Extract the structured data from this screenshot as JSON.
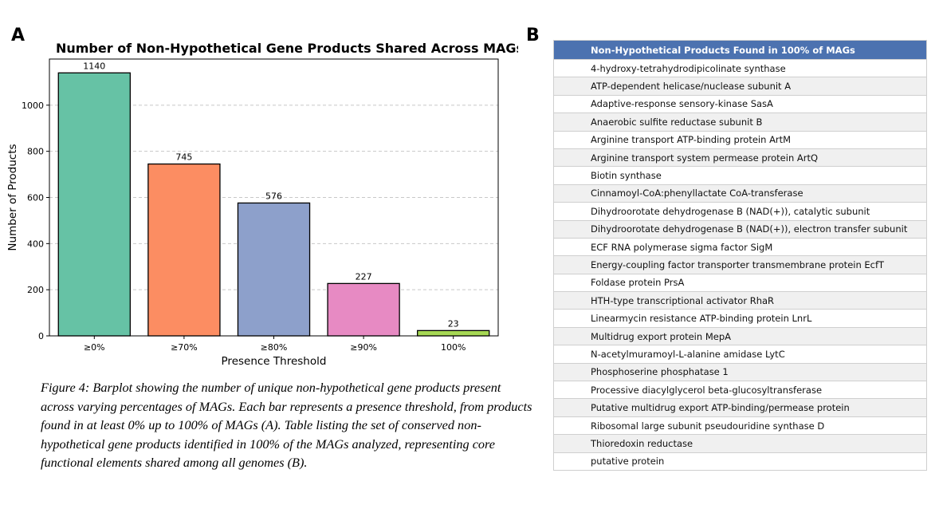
{
  "panels": {
    "a_label": "A",
    "b_label": "B"
  },
  "chart_data": {
    "type": "bar",
    "title": "Number of Non-Hypothetical Gene Products Shared Across MAGs",
    "xlabel": "Presence Threshold",
    "ylabel": "Number of Products",
    "categories": [
      "≥0%",
      "≥70%",
      "≥80%",
      "≥90%",
      "100%"
    ],
    "values": [
      1140,
      745,
      576,
      227,
      23
    ],
    "bar_colors": [
      "#66c2a5",
      "#fc8d62",
      "#8da0cb",
      "#e78ac3",
      "#a6d854"
    ],
    "ylim": [
      0,
      1200
    ],
    "yticks": [
      0,
      200,
      400,
      600,
      800,
      1000
    ],
    "grid": "horizontal dashed",
    "data_labels": true
  },
  "caption": "Figure 4: Barplot showing the number of unique non-hypothetical gene products present across varying percentages of MAGs. Each bar represents a presence threshold, from products found in at least 0% up to 100% of MAGs (A). Table listing the set of conserved non-hypothetical gene products identified in 100% of the MAGs analyzed, representing core functional elements shared among all genomes (B).",
  "table": {
    "header": "Non-Hypothetical Products Found in 100% of MAGs",
    "header_color": "#4c72b0",
    "rows": [
      "4-hydroxy-tetrahydrodipicolinate synthase",
      "ATP-dependent helicase/nuclease subunit A",
      "Adaptive-response sensory-kinase SasA",
      "Anaerobic sulfite reductase subunit B",
      "Arginine transport ATP-binding protein ArtM",
      "Arginine transport system permease protein ArtQ",
      "Biotin synthase",
      "Cinnamoyl-CoA:phenyllactate CoA-transferase",
      "Dihydroorotate dehydrogenase B (NAD(+)), catalytic subunit",
      "Dihydroorotate dehydrogenase B (NAD(+)), electron transfer subunit",
      "ECF RNA polymerase sigma factor SigM",
      "Energy-coupling factor transporter transmembrane protein EcfT",
      "Foldase protein PrsA",
      "HTH-type transcriptional activator RhaR",
      "Linearmycin resistance ATP-binding protein LnrL",
      "Multidrug export protein MepA",
      "N-acetylmuramoyl-L-alanine amidase LytC",
      "Phosphoserine phosphatase 1",
      "Processive diacylglycerol beta-glucosyltransferase",
      "Putative multidrug export ATP-binding/permease protein",
      "Ribosomal large subunit pseudouridine synthase D",
      "Thioredoxin reductase",
      "putative protein"
    ]
  }
}
